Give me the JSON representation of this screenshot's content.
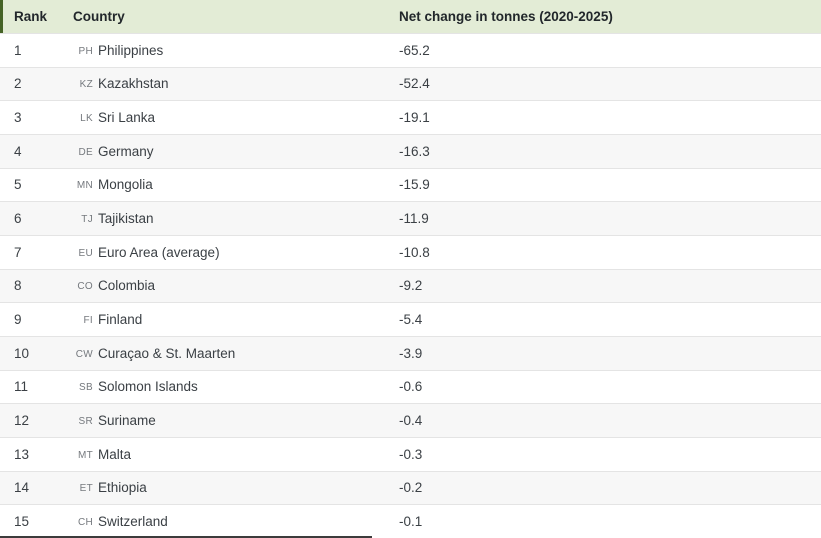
{
  "chart_data": {
    "type": "table",
    "columns": [
      "Rank",
      "Country",
      "Net change in tonnes (2020-2025)"
    ],
    "rows": [
      {
        "rank": "1",
        "code": "PH",
        "country": "Philippines",
        "value": "-65.2"
      },
      {
        "rank": "2",
        "code": "KZ",
        "country": "Kazakhstan",
        "value": "-52.4"
      },
      {
        "rank": "3",
        "code": "LK",
        "country": "Sri Lanka",
        "value": "-19.1"
      },
      {
        "rank": "4",
        "code": "DE",
        "country": "Germany",
        "value": "-16.3"
      },
      {
        "rank": "5",
        "code": "MN",
        "country": "Mongolia",
        "value": "-15.9"
      },
      {
        "rank": "6",
        "code": "TJ",
        "country": "Tajikistan",
        "value": "-11.9"
      },
      {
        "rank": "7",
        "code": "EU",
        "country": "Euro Area (average)",
        "value": "-10.8"
      },
      {
        "rank": "8",
        "code": "CO",
        "country": "Colombia",
        "value": "-9.2"
      },
      {
        "rank": "9",
        "code": "FI",
        "country": "Finland",
        "value": "-5.4"
      },
      {
        "rank": "10",
        "code": "CW",
        "country": "Curaçao & St. Maarten",
        "value": "-3.9"
      },
      {
        "rank": "11",
        "code": "SB",
        "country": "Solomon Islands",
        "value": "-0.6"
      },
      {
        "rank": "12",
        "code": "SR",
        "country": "Suriname",
        "value": "-0.4"
      },
      {
        "rank": "13",
        "code": "MT",
        "country": "Malta",
        "value": "-0.3"
      },
      {
        "rank": "14",
        "code": "ET",
        "country": "Ethiopia",
        "value": "-0.2"
      },
      {
        "rank": "15",
        "code": "CH",
        "country": "Switzerland",
        "value": "-0.1"
      }
    ]
  },
  "colors": {
    "accent_green": "#456326",
    "header_bg": "#e3ecd6",
    "alt_row_bg": "#f7f7f7",
    "row_border": "#e4e4e4",
    "text_primary": "#3b4045",
    "code_gray": "#75797e"
  }
}
